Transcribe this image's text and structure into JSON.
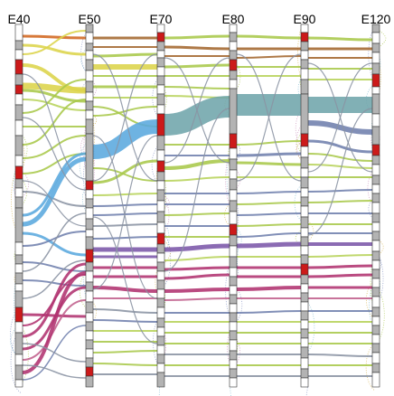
{
  "stages": [
    {
      "label": "E40"
    },
    {
      "label": "E50"
    },
    {
      "label": "E70"
    },
    {
      "label": "E80"
    },
    {
      "label": "E90"
    },
    {
      "label": "E120"
    }
  ],
  "colors": {
    "node_gray": "#b3b3b3",
    "node_white": "#ffffff",
    "node_red": "#cc1a1a",
    "outline": "#333333",
    "dots": [
      "#a8c84a",
      "#c88ab8",
      "#7c8cc0",
      "#d4b04a",
      "#7cb8d0"
    ],
    "flows": {
      "orange": "#d2661f",
      "brown": "#a3662e",
      "yellow": "#dcd44a",
      "olive": "#a8c84a",
      "lime": "#b7d35a",
      "teal": "#6fa5ab",
      "sky": "#5aa8de",
      "gray": "#8a93a3",
      "slate": "#7080ad",
      "purple": "#7b56a8",
      "magenta": "#b0326f",
      "pink": "#c0608c",
      "green": "#7dab4a"
    }
  }
}
